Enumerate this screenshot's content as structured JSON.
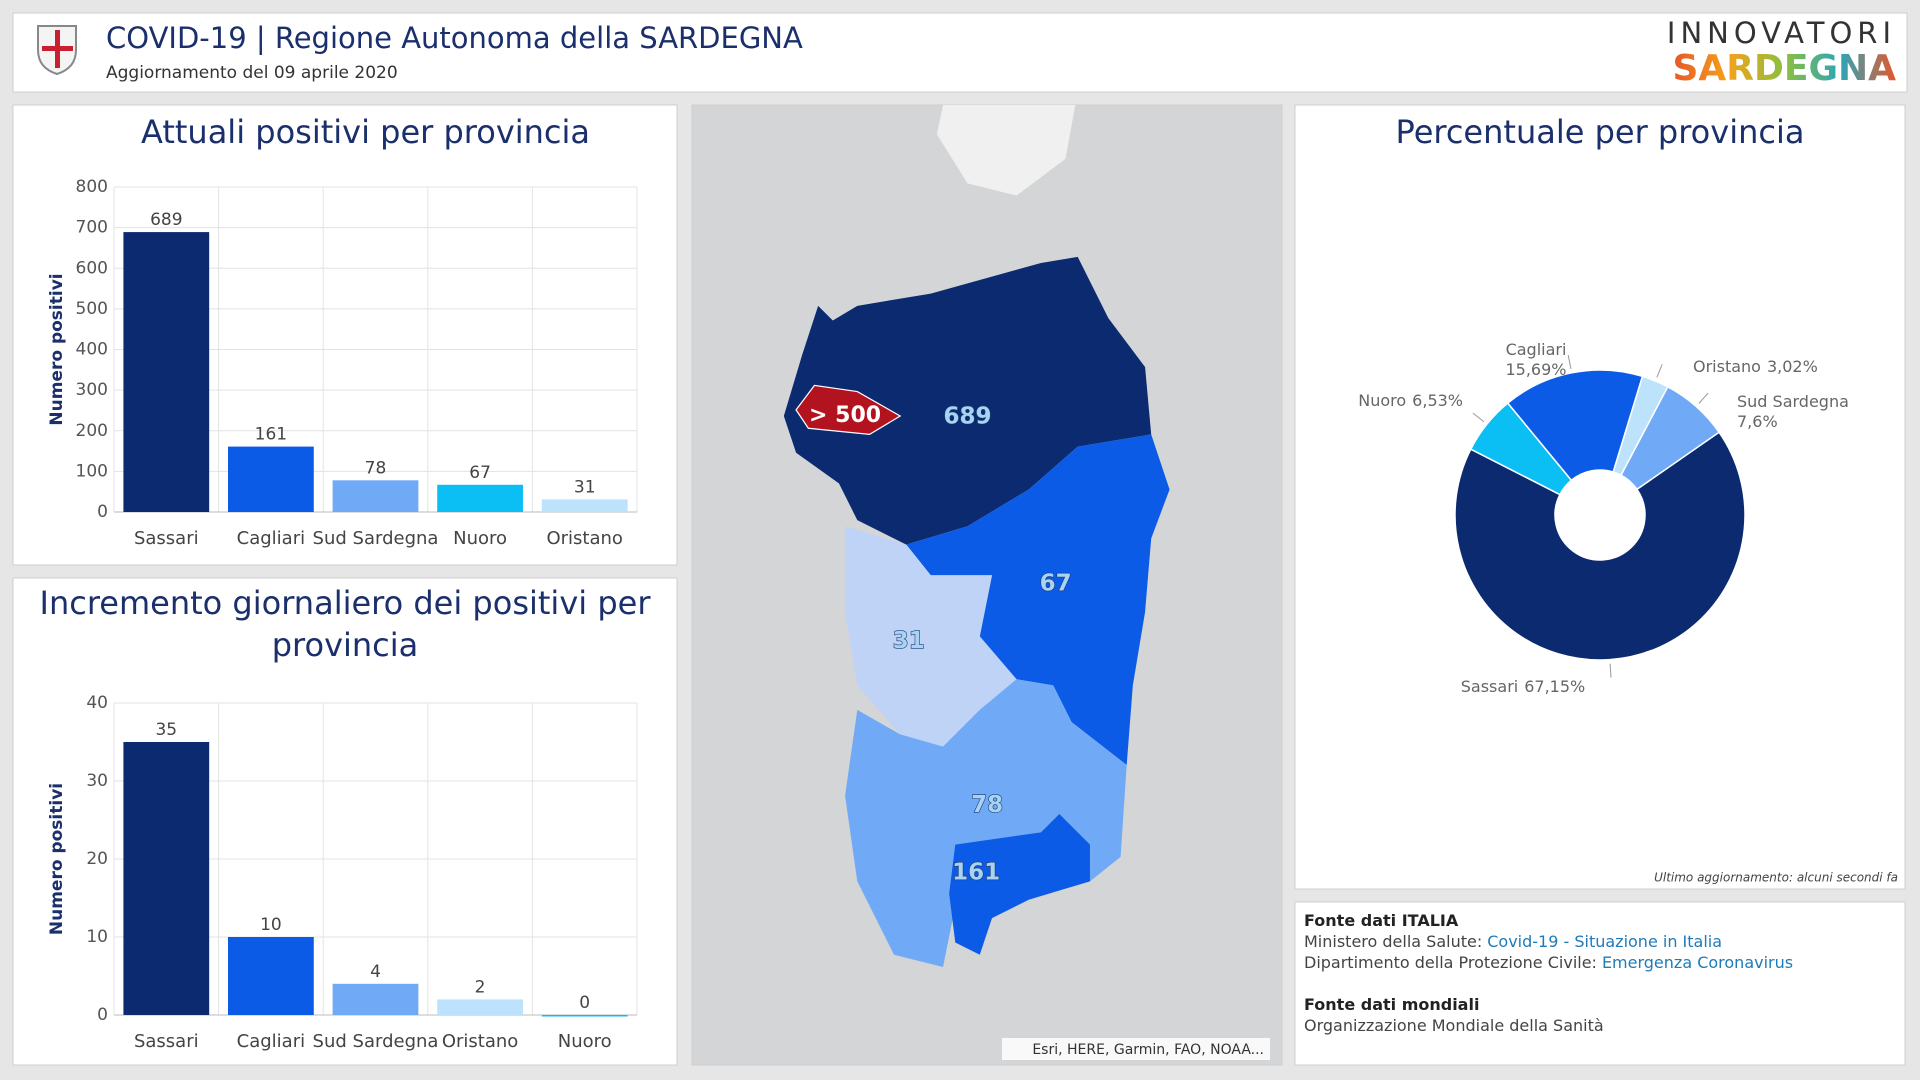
{
  "header": {
    "title": "COVID-19 | Regione Autonoma della SARDEGNA",
    "subtitle": "Aggiornamento del 09 aprile 2020",
    "brand_top": "INNOVATORI",
    "brand_bottom": "SARDEGNA"
  },
  "chart_data": [
    {
      "type": "bar",
      "title": "Attuali positivi per provincia",
      "y_label": "Numero positivi",
      "categories": [
        "Sassari",
        "Cagliari",
        "Sud Sardegna",
        "Nuoro",
        "Oristano"
      ],
      "values": [
        689,
        161,
        78,
        67,
        31
      ],
      "colors": [
        "#0b2a6f",
        "#0b5be6",
        "#70a9f5",
        "#0bbff4",
        "#bde2fb"
      ],
      "ylim": [
        0,
        800
      ],
      "yticks": [
        0,
        100,
        200,
        300,
        400,
        500,
        600,
        700,
        800
      ],
      "grid": true
    },
    {
      "type": "bar",
      "title": "Incremento giornaliero dei positivi per provincia",
      "y_label": "Numero positivi",
      "categories": [
        "Sassari",
        "Cagliari",
        "Sud Sardegna",
        "Oristano",
        "Nuoro"
      ],
      "values": [
        35,
        10,
        4,
        2,
        0
      ],
      "colors": [
        "#0b2a6f",
        "#0b5be6",
        "#70a9f5",
        "#bde2fb",
        "#0bbff4"
      ],
      "ylim": [
        0,
        40
      ],
      "yticks": [
        0,
        10,
        20,
        30,
        40
      ],
      "grid": true
    },
    {
      "type": "pie",
      "title": "Percentuale per provincia",
      "donut": true,
      "categories": [
        "Oristano",
        "Sud Sardegna",
        "Sassari",
        "Nuoro",
        "Cagliari"
      ],
      "values": [
        3.02,
        7.6,
        67.15,
        6.53,
        15.69
      ],
      "value_labels": [
        "3,02%",
        "7,6%",
        "67,15%",
        "6,53%",
        "15,69%"
      ],
      "colors": [
        "#bde2fb",
        "#70a9f5",
        "#0b2a6f",
        "#0bbff4",
        "#0b5be6"
      ],
      "note": "Ultimo aggiornamento: alcuni secondi fa"
    }
  ],
  "map": {
    "values": [
      689,
      67,
      31,
      78,
      161
    ],
    "highlight": "> 500",
    "attribution": "Esri, HERE, Garmin, FAO, NOAA..."
  },
  "sources": {
    "italy_heading": "Fonte dati ITALIA",
    "italy_lines": [
      {
        "source": "Ministero della Salute:",
        "link": "Covid-19 - Situazione in Italia"
      },
      {
        "source": "Dipartimento della Protezione Civile:",
        "link": "Emergenza Coronavirus"
      }
    ],
    "world_heading": "Fonte dati mondiali",
    "world_lines": [
      "Organizzazione Mondiale della Sanità"
    ]
  }
}
